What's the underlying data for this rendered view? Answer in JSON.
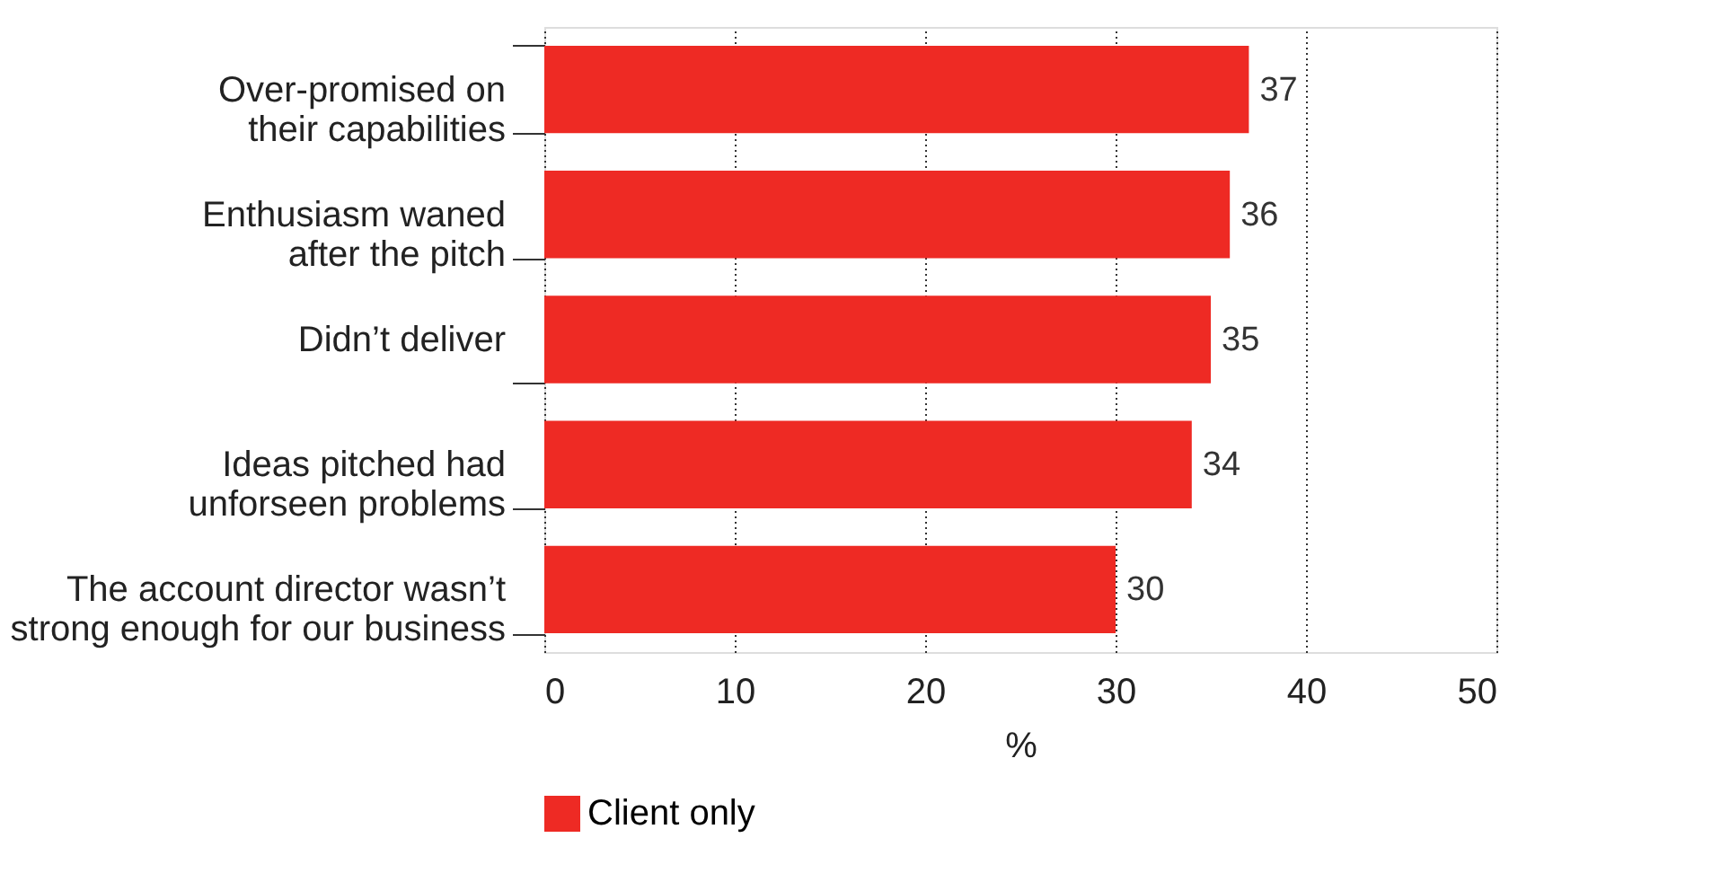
{
  "chart_data": {
    "type": "bar",
    "orientation": "horizontal",
    "categories": [
      "Over-promised on\ntheir capabilities",
      "Enthusiasm waned\nafter the pitch",
      "Didn’t deliver",
      "Ideas pitched had\nunforseen problems",
      "The account director wasn’t\nstrong enough for our business"
    ],
    "series": [
      {
        "name": "Client only",
        "color": "#ee2a24",
        "values": [
          37,
          36,
          35,
          34,
          30
        ]
      }
    ],
    "xlabel": "%",
    "xlim": [
      0,
      50
    ],
    "xticks": [
      0,
      10,
      20,
      30,
      40,
      50
    ],
    "grid": "x",
    "legend": "bottom",
    "data_labels": true
  }
}
